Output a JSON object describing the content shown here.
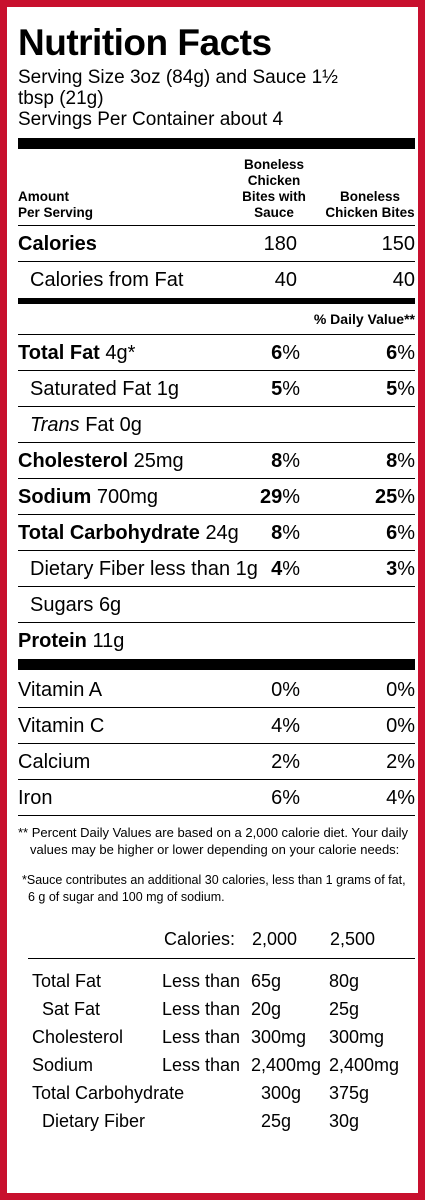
{
  "title": "Nutrition Facts",
  "serving_size": "Serving Size 3oz (84g) and Sauce 1½ tbsp (21g)",
  "servings_per_container": "Servings Per Container about 4",
  "header": {
    "amount": "Amount",
    "per_serving": "Per Serving",
    "col1_l1": "Boneless Chicken",
    "col1_l2": "Bites with",
    "col1_l3": "Sauce",
    "col2_l1": "Boneless",
    "col2_l2": "Chicken Bites"
  },
  "calories": {
    "label": "Calories",
    "v1": "180",
    "v2": "150"
  },
  "calories_fat": {
    "label": "Calories from Fat",
    "v1": "40",
    "v2": "40"
  },
  "daily_value_label": "% Daily Value**",
  "nutrients": [
    {
      "name": "Total Fat",
      "amount": "4g*",
      "v1": "6",
      "v2": "6"
    },
    {
      "name": "Saturated Fat",
      "amount": "1g",
      "v1": "5",
      "v2": "5"
    },
    {
      "name": "Trans",
      "suffix": "Fat 0g"
    },
    {
      "name": "Cholesterol",
      "amount": "25mg",
      "v1": "8",
      "v2": "8"
    },
    {
      "name": "Sodium",
      "amount": "700mg",
      "v1": "29",
      "v2": "25"
    },
    {
      "name": "Total Carbohydrate",
      "amount": "24g",
      "v1": "8",
      "v2": "6"
    },
    {
      "name": "Dietary Fiber",
      "amount": "less than 1g",
      "v1": "4",
      "v2": "3"
    },
    {
      "name": "Sugars",
      "amount": "6g"
    },
    {
      "name": "Protein",
      "amount": "11g"
    }
  ],
  "pct": "%",
  "vitamins": [
    {
      "name": "Vitamin A",
      "v1": "0%",
      "v2": "0%"
    },
    {
      "name": "Vitamin C",
      "v1": "4%",
      "v2": "0%"
    },
    {
      "name": "Calcium",
      "v1": "2%",
      "v2": "2%"
    },
    {
      "name": "Iron",
      "v1": "6%",
      "v2": "4%"
    }
  ],
  "footnote_daily": "** Percent Daily Values are based on a 2,000 calorie diet. Your daily values may be higher or lower depending on your calorie needs:",
  "footnote_sauce": "*Sauce contributes an additional 30 calories, less than 1 grams of fat, 6 g of sugar and 100 mg of sodium.",
  "reference": {
    "calories_label": "Calories:",
    "cal1": "2,000",
    "cal2": "2,500",
    "rows": [
      {
        "name": "Total Fat",
        "qual": "Less than",
        "a": "65g",
        "b": "80g"
      },
      {
        "name": "Sat Fat",
        "qual": "Less than",
        "a": "20g",
        "b": "25g"
      },
      {
        "name": "Cholesterol",
        "qual": "Less than",
        "a": "300mg",
        "b": "300mg"
      },
      {
        "name": "Sodium",
        "qual": "Less than",
        "a": "2,400mg",
        "b": "2,400mg"
      },
      {
        "name": "Total Carbohydrate",
        "qual": "",
        "a": "300g",
        "b": "375g"
      },
      {
        "name": "Dietary Fiber",
        "qual": "",
        "a": "25g",
        "b": "30g"
      }
    ]
  }
}
